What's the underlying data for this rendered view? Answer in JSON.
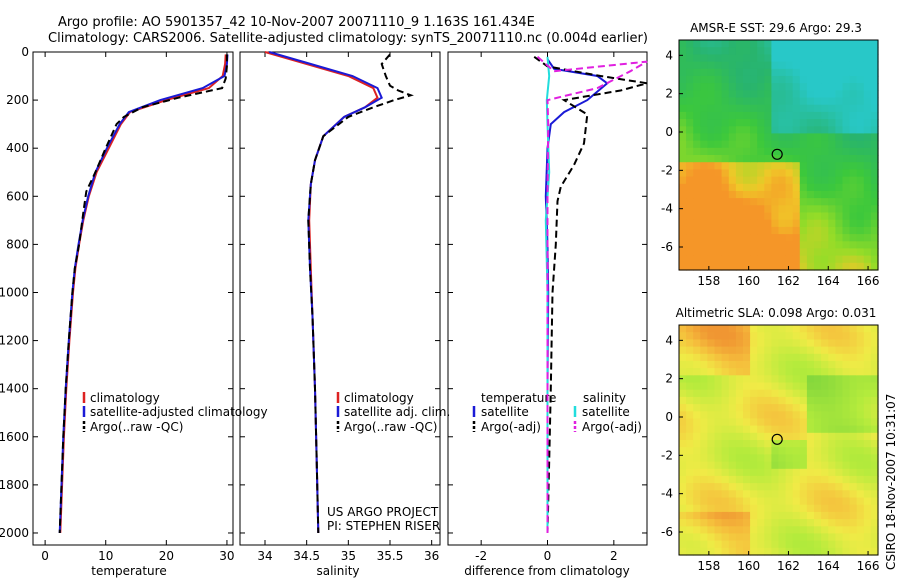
{
  "header": {
    "line1": "Argo profile: AO 5901357_42 10-Nov-2007 20071110_9 1.163S 161.434E",
    "line2": "Climatology: CARS2006. Satellite-adjusted climatology: synTS_20071110.nc (0.004d earlier)"
  },
  "stamp": "CSIRO 18-Nov-2007 10:31:07",
  "project": {
    "line1": "US ARGO PROJECT",
    "line2": "PI: STEPHEN RISER"
  },
  "colors": {
    "climatology": "#dd2222",
    "satellite": "#1a1ad6",
    "argo": "#000000",
    "salinity_satellite": "#22dddd",
    "salinity_argo": "#e020e0"
  },
  "legends": {
    "temp": [
      "climatology",
      "satellite-adjusted climatology",
      "Argo(..raw -QC)"
    ],
    "sal": [
      "climatology",
      "satellite adj. clim.",
      "Argo(..raw -QC)"
    ],
    "diff": {
      "temp_header": "temperature",
      "sal_header": "salinity",
      "temp": [
        "satellite",
        "Argo(-adj)"
      ],
      "sal": [
        "satellite",
        "Argo(-adj)"
      ]
    }
  },
  "chart_data": [
    {
      "type": "line",
      "id": "temperature",
      "xlabel": "temperature",
      "xlim": [
        -2,
        31
      ],
      "xticks": [
        0,
        10,
        20,
        30
      ],
      "ylim": [
        2050,
        0
      ],
      "yticks": [
        0,
        200,
        400,
        600,
        800,
        1000,
        1200,
        1400,
        1600,
        1800,
        2000
      ],
      "series": [
        {
          "name": "climatology",
          "color": "#dd2222",
          "points": [
            [
              29.8,
              10
            ],
            [
              29.7,
              50
            ],
            [
              29.3,
              100
            ],
            [
              27,
              150
            ],
            [
              20,
              200
            ],
            [
              14,
              250
            ],
            [
              12.5,
              300
            ],
            [
              10.5,
              400
            ],
            [
              8.5,
              500
            ],
            [
              7.2,
              600
            ],
            [
              6.3,
              700
            ],
            [
              5.6,
              800
            ],
            [
              5,
              900
            ],
            [
              4.6,
              1000
            ],
            [
              4,
              1200
            ],
            [
              3.5,
              1400
            ],
            [
              3.1,
              1600
            ],
            [
              2.8,
              1800
            ],
            [
              2.5,
              2000
            ]
          ]
        },
        {
          "name": "satellite-adjusted climatology",
          "color": "#1a1ad6",
          "points": [
            [
              30.1,
              10
            ],
            [
              30,
              50
            ],
            [
              29.6,
              100
            ],
            [
              26,
              150
            ],
            [
              19,
              200
            ],
            [
              13.8,
              250
            ],
            [
              12.3,
              300
            ],
            [
              10.2,
              400
            ],
            [
              8.3,
              500
            ],
            [
              7.1,
              600
            ],
            [
              6.2,
              700
            ],
            [
              5.5,
              800
            ],
            [
              4.9,
              900
            ],
            [
              4.5,
              1000
            ],
            [
              3.9,
              1200
            ],
            [
              3.4,
              1400
            ],
            [
              3.0,
              1600
            ],
            [
              2.7,
              1800
            ],
            [
              2.4,
              2000
            ]
          ]
        },
        {
          "name": "Argo(..raw -QC)",
          "color": "#000000",
          "dashed": true,
          "points": [
            [
              30.0,
              10
            ],
            [
              30.0,
              60
            ],
            [
              29.8,
              110
            ],
            [
              29.2,
              150
            ],
            [
              22,
              190
            ],
            [
              16,
              230
            ],
            [
              13,
              270
            ],
            [
              11.8,
              300
            ],
            [
              10,
              400
            ],
            [
              8.3,
              500
            ],
            [
              6.8,
              580
            ],
            [
              6.4,
              650
            ],
            [
              5.6,
              800
            ],
            [
              4.9,
              900
            ],
            [
              4.5,
              1000
            ],
            [
              3.9,
              1200
            ],
            [
              3.4,
              1400
            ],
            [
              3.0,
              1600
            ],
            [
              2.7,
              1800
            ],
            [
              2.4,
              2000
            ]
          ]
        }
      ]
    },
    {
      "type": "line",
      "id": "salinity",
      "xlabel": "salinity",
      "xlim": [
        33.7,
        36.1
      ],
      "xticks": [
        34,
        34.5,
        35,
        35.5,
        36
      ],
      "ylim": [
        2050,
        0
      ],
      "series": [
        {
          "name": "climatology",
          "color": "#dd2222",
          "points": [
            [
              34.0,
              0
            ],
            [
              34.5,
              50
            ],
            [
              35.0,
              100
            ],
            [
              35.3,
              150
            ],
            [
              35.35,
              190
            ],
            [
              35.2,
              230
            ],
            [
              34.95,
              270
            ],
            [
              34.7,
              350
            ],
            [
              34.6,
              450
            ],
            [
              34.55,
              550
            ],
            [
              34.53,
              700
            ],
            [
              34.55,
              900
            ],
            [
              34.57,
              1100
            ],
            [
              34.6,
              1400
            ],
            [
              34.62,
              1700
            ],
            [
              34.64,
              2000
            ]
          ]
        },
        {
          "name": "satellite adj. clim.",
          "color": "#1a1ad6",
          "points": [
            [
              34.05,
              0
            ],
            [
              34.55,
              50
            ],
            [
              35.05,
              100
            ],
            [
              35.35,
              150
            ],
            [
              35.4,
              190
            ],
            [
              35.2,
              230
            ],
            [
              34.95,
              270
            ],
            [
              34.7,
              350
            ],
            [
              34.6,
              450
            ],
            [
              34.55,
              550
            ],
            [
              34.52,
              700
            ],
            [
              34.54,
              900
            ],
            [
              34.57,
              1100
            ],
            [
              34.6,
              1400
            ],
            [
              34.62,
              1700
            ],
            [
              34.64,
              2000
            ]
          ]
        },
        {
          "name": "Argo(..raw -QC)",
          "color": "#000000",
          "dashed": true,
          "points": [
            [
              35.5,
              10
            ],
            [
              35.4,
              50
            ],
            [
              35.45,
              100
            ],
            [
              35.5,
              140
            ],
            [
              35.6,
              160
            ],
            [
              35.75,
              180
            ],
            [
              35.55,
              200
            ],
            [
              35.3,
              230
            ],
            [
              35.0,
              270
            ],
            [
              34.7,
              350
            ],
            [
              34.6,
              450
            ],
            [
              34.55,
              550
            ],
            [
              34.52,
              700
            ],
            [
              34.54,
              900
            ],
            [
              34.57,
              1100
            ],
            [
              34.6,
              1400
            ],
            [
              34.62,
              1700
            ],
            [
              34.64,
              2000
            ]
          ]
        }
      ]
    },
    {
      "type": "line",
      "id": "difference",
      "xlabel": "difference from climatology",
      "xlim": [
        -3,
        3
      ],
      "xticks": [
        -2,
        0,
        2
      ],
      "ylim": [
        2050,
        0
      ],
      "series": [
        {
          "name": "temperature satellite",
          "color": "#1a1ad6",
          "points": [
            [
              0,
              30
            ],
            [
              0.2,
              70
            ],
            [
              1.5,
              100
            ],
            [
              1.8,
              130
            ],
            [
              1.2,
              200
            ],
            [
              0.5,
              250
            ],
            [
              0.1,
              300
            ],
            [
              0,
              400
            ],
            [
              -0.05,
              600
            ],
            [
              0,
              800
            ],
            [
              0.02,
              1000
            ],
            [
              0,
              1400
            ],
            [
              0,
              2000
            ]
          ]
        },
        {
          "name": "temperature Argo(-adj)",
          "color": "#000000",
          "dashed": true,
          "points": [
            [
              -0.4,
              20
            ],
            [
              0,
              60
            ],
            [
              1.6,
              100
            ],
            [
              3,
              130
            ],
            [
              2.2,
              160
            ],
            [
              0.5,
              200
            ],
            [
              1.2,
              260
            ],
            [
              1.1,
              380
            ],
            [
              0.8,
              470
            ],
            [
              0.4,
              560
            ],
            [
              0.3,
              620
            ],
            [
              0.25,
              800
            ],
            [
              0.15,
              1000
            ],
            [
              0.1,
              1400
            ],
            [
              0.05,
              1700
            ],
            [
              0,
              2000
            ]
          ]
        },
        {
          "name": "salinity satellite",
          "color": "#22dddd",
          "points": [
            [
              0,
              20
            ],
            [
              0.05,
              100
            ],
            [
              -0.02,
              200
            ],
            [
              0,
              300
            ],
            [
              0.05,
              500
            ],
            [
              -0.05,
              700
            ],
            [
              0,
              1000
            ],
            [
              0,
              2000
            ]
          ]
        },
        {
          "name": "salinity Argo(-adj)",
          "color": "#e020e0",
          "dashed": true,
          "points": [
            [
              -0.3,
              20
            ],
            [
              0.2,
              80
            ],
            [
              3,
              40
            ],
            [
              2.5,
              80
            ],
            [
              1.5,
              150
            ],
            [
              0,
              200
            ],
            [
              0.02,
              300
            ],
            [
              0,
              600
            ],
            [
              0,
              900
            ],
            [
              0,
              2000
            ]
          ]
        }
      ]
    },
    {
      "type": "heatmap",
      "id": "sst",
      "title": "AMSR-E SST: 29.6 Argo: 29.3",
      "xlim": [
        156.5,
        166.5
      ],
      "xticks": [
        158,
        160,
        162,
        164,
        166
      ],
      "ylim": [
        -7.2,
        4.8
      ],
      "yticks": [
        -6,
        -4,
        -2,
        0,
        2,
        4
      ],
      "marker": [
        161.434,
        -1.163
      ]
    },
    {
      "type": "heatmap",
      "id": "sla",
      "title": "Altimetric SLA: 0.098 Argo: 0.031",
      "xlim": [
        156.5,
        166.5
      ],
      "xticks": [
        158,
        160,
        162,
        164,
        166
      ],
      "ylim": [
        -7.2,
        4.8
      ],
      "yticks": [
        -6,
        -4,
        -2,
        0,
        2,
        4
      ],
      "marker": [
        161.434,
        -1.163
      ]
    }
  ]
}
